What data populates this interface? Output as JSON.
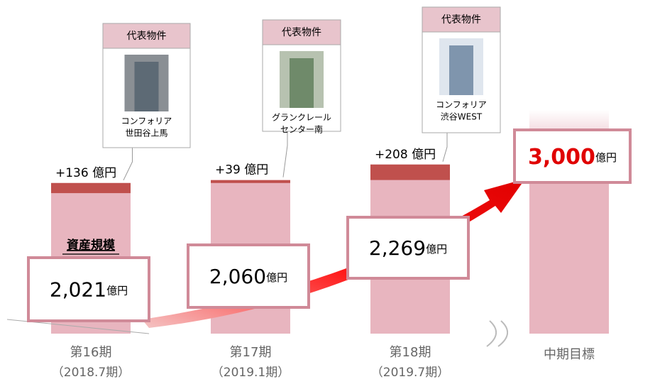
{
  "chart_data": {
    "type": "bar",
    "series_label": "資産規模",
    "categories": [
      "第16期",
      "第17期",
      "第18期",
      "中期目標"
    ],
    "sublabels": [
      "（2018.7期）",
      "（2019.1期）",
      "（2019.7期）",
      null
    ],
    "values": [
      2021,
      2060,
      2269,
      3000
    ],
    "value_labels": [
      "2,021",
      "2,060",
      "2,269",
      "3,000"
    ],
    "unit": "億円",
    "increments": [
      136,
      39,
      208,
      null
    ],
    "increment_labels": [
      "+136 億円",
      "+39 億円",
      "+208 億円",
      null
    ],
    "color": "#e8b5bf",
    "increment_color": "#c0504d",
    "ylim": [
      0,
      3000
    ],
    "properties": [
      {
        "header": "代表物件",
        "name": [
          "コンフォリア",
          "世田谷上馬"
        ]
      },
      {
        "header": "代表物件",
        "name": [
          "グランクレール",
          "センター南"
        ]
      },
      {
        "header": "代表物件",
        "name": [
          "コンフォリア",
          "渋谷WEST"
        ]
      }
    ]
  }
}
